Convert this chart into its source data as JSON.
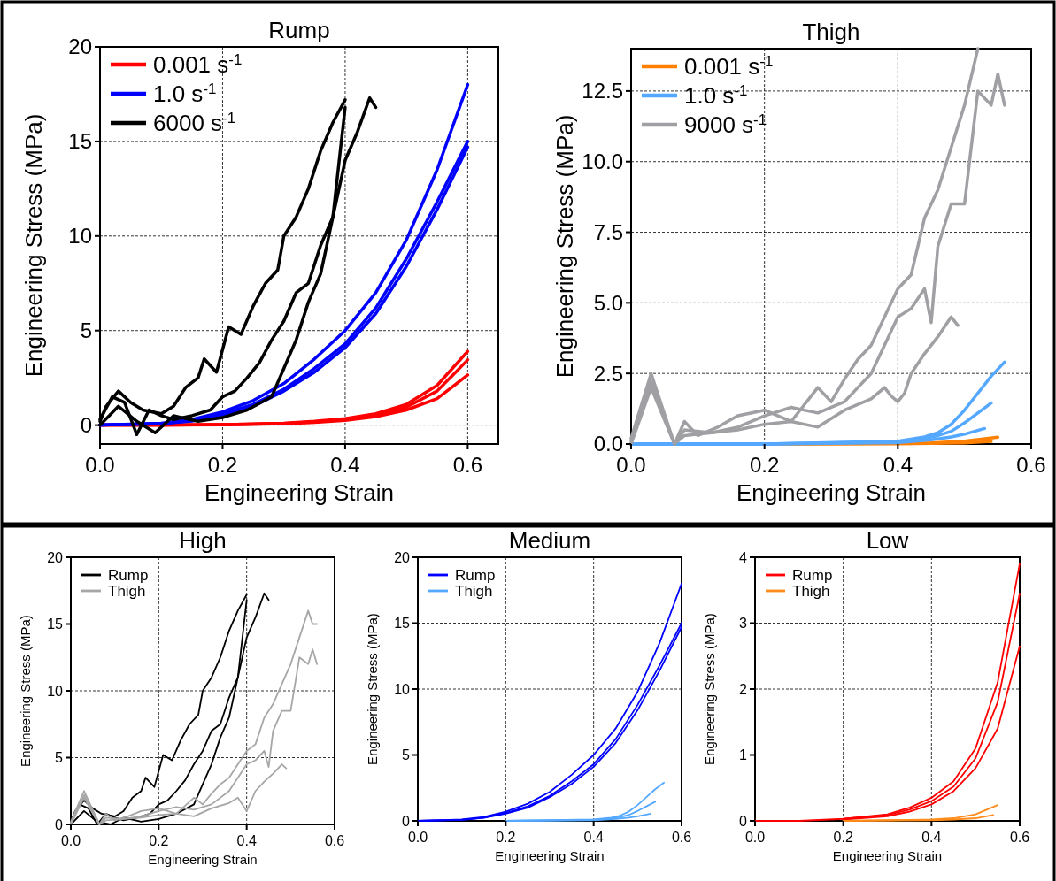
{
  "chart_data": [
    {
      "type": "line",
      "title": "Rump",
      "xlabel": "Engineering Strain",
      "ylabel": "Engineering Stress (MPa)",
      "xlim": [
        0,
        0.65
      ],
      "ylim": [
        -1,
        20
      ],
      "xticks": [
        {
          "value": 0,
          "label": "0.0"
        },
        {
          "value": 0.2,
          "label": "0.2"
        },
        {
          "value": 0.4,
          "label": "0.4"
        },
        {
          "value": 0.6,
          "label": "0.6"
        }
      ],
      "yticks": [
        0,
        5,
        10,
        15,
        20
      ],
      "grid": true,
      "legend": "top left",
      "series": [
        {
          "name": "0.001 s$^{-1}$",
          "color": "#ff0000",
          "x": [
            0,
            0.1,
            0.2,
            0.3,
            0.35,
            0.4,
            0.45,
            0.5,
            0.55,
            0.6
          ],
          "values": [
            0,
            0,
            0.03,
            0.1,
            0.2,
            0.35,
            0.6,
            1.1,
            2.1,
            3.9
          ]
        },
        {
          "color": "#ff0000",
          "x": [
            0,
            0.1,
            0.2,
            0.3,
            0.35,
            0.4,
            0.45,
            0.5,
            0.55,
            0.6
          ],
          "values": [
            0,
            0,
            0.03,
            0.09,
            0.17,
            0.3,
            0.52,
            0.95,
            1.8,
            3.45
          ]
        },
        {
          "color": "#ff0000",
          "x": [
            0,
            0.1,
            0.2,
            0.3,
            0.35,
            0.4,
            0.45,
            0.5,
            0.55,
            0.6
          ],
          "values": [
            0,
            0,
            0.02,
            0.07,
            0.14,
            0.25,
            0.45,
            0.8,
            1.4,
            2.65
          ]
        },
        {
          "name": "1.0 s$^{-1}$",
          "color": "#0000ff",
          "x": [
            0,
            0.1,
            0.15,
            0.2,
            0.25,
            0.3,
            0.35,
            0.4,
            0.45,
            0.5,
            0.55,
            0.6
          ],
          "values": [
            0,
            0.1,
            0.3,
            0.7,
            1.3,
            2.2,
            3.5,
            5,
            7,
            9.8,
            13.5,
            18
          ]
        },
        {
          "color": "#0000ff",
          "x": [
            0,
            0.1,
            0.15,
            0.2,
            0.25,
            0.3,
            0.35,
            0.4,
            0.45,
            0.5,
            0.55,
            0.6
          ],
          "values": [
            0,
            0.08,
            0.25,
            0.6,
            1.1,
            1.9,
            3,
            4.3,
            6.2,
            8.8,
            11.8,
            15
          ]
        },
        {
          "color": "#0000ff",
          "x": [
            0,
            0.1,
            0.15,
            0.2,
            0.25,
            0.3,
            0.35,
            0.4,
            0.45,
            0.5,
            0.55,
            0.6
          ],
          "values": [
            0,
            0.07,
            0.22,
            0.55,
            1,
            1.8,
            2.8,
            4.1,
            5.9,
            8.4,
            11.4,
            14.7
          ]
        },
        {
          "name": "6000 s$^{-1}$",
          "color": "#000000",
          "x": [
            0,
            0.01,
            0.03,
            0.05,
            0.07,
            0.1,
            0.12,
            0.14,
            0.16,
            0.17,
            0.19,
            0.21,
            0.23,
            0.25,
            0.27,
            0.29,
            0.3,
            0.32,
            0.34,
            0.36,
            0.38,
            0.4
          ],
          "values": [
            0.2,
            1,
            1.8,
            1.2,
            0.8,
            0.6,
            1,
            2,
            2.5,
            3.5,
            2.8,
            5.2,
            4.8,
            6.3,
            7.5,
            8.2,
            10,
            11,
            12.5,
            14.5,
            16,
            17.2
          ]
        },
        {
          "color": "#000000",
          "x": [
            0,
            0.02,
            0.04,
            0.06,
            0.08,
            0.1,
            0.12,
            0.15,
            0.18,
            0.2,
            0.22,
            0.24,
            0.26,
            0.28,
            0.3,
            0.32,
            0.34,
            0.36,
            0.38,
            0.4,
            0.42,
            0.44,
            0.45
          ],
          "values": [
            0.3,
            1.5,
            1.2,
            -0.5,
            0.8,
            0.5,
            0.3,
            0.5,
            0.8,
            1.5,
            1.8,
            2.5,
            3.3,
            4.5,
            5.5,
            7,
            7.5,
            9.5,
            11,
            14,
            15.5,
            17.3,
            16.8
          ]
        },
        {
          "color": "#000000",
          "x": [
            0,
            0.03,
            0.06,
            0.09,
            0.12,
            0.16,
            0.2,
            0.24,
            0.28,
            0.3,
            0.32,
            0.34,
            0.36,
            0.38,
            0.4
          ],
          "values": [
            0,
            1,
            0.2,
            -0.4,
            0.5,
            0.2,
            0.4,
            0.8,
            1.5,
            3,
            4.5,
            6.5,
            8,
            11,
            16.8
          ]
        }
      ]
    },
    {
      "type": "line",
      "title": "Thigh",
      "xlabel": "Engineering Strain",
      "ylabel": "Engineering Stress (MPa)",
      "xlim": [
        0,
        0.6
      ],
      "ylim": [
        0,
        14
      ],
      "xticks": [
        {
          "value": 0,
          "label": "0.0"
        },
        {
          "value": 0.2,
          "label": "0.2"
        },
        {
          "value": 0.4,
          "label": "0.4"
        },
        {
          "value": 0.6,
          "label": "0.6"
        }
      ],
      "yticks": [
        {
          "value": 0,
          "label": "0.0"
        },
        {
          "value": 2.5,
          "label": "2.5"
        },
        {
          "value": 5,
          "label": "5.0"
        },
        {
          "value": 7.5,
          "label": "7.5"
        },
        {
          "value": 10,
          "label": "10.0"
        },
        {
          "value": 12.5,
          "label": "12.5"
        }
      ],
      "grid": true,
      "legend": "top left",
      "series": [
        {
          "name": "0.001 s$^{-1}$",
          "color": "#ff8000",
          "x": [
            0,
            0.2,
            0.4,
            0.45,
            0.5,
            0.55
          ],
          "values": [
            0,
            0,
            0.02,
            0.04,
            0.1,
            0.24
          ]
        },
        {
          "color": "#ff8000",
          "x": [
            0,
            0.2,
            0.4,
            0.45,
            0.5,
            0.54
          ],
          "values": [
            0,
            0,
            0.01,
            0.02,
            0.04,
            0.09
          ]
        },
        {
          "name": "1.0 s$^{-1}$",
          "color": "#55a8ff",
          "x": [
            0,
            0.2,
            0.4,
            0.44,
            0.46,
            0.48,
            0.5,
            0.52,
            0.54,
            0.56
          ],
          "values": [
            0,
            0,
            0.1,
            0.25,
            0.4,
            0.7,
            1.2,
            1.8,
            2.4,
            2.9
          ]
        },
        {
          "color": "#55a8ff",
          "x": [
            0,
            0.2,
            0.4,
            0.44,
            0.46,
            0.48,
            0.5,
            0.52,
            0.54
          ],
          "values": [
            0,
            0,
            0.08,
            0.2,
            0.3,
            0.45,
            0.75,
            1.1,
            1.45
          ]
        },
        {
          "color": "#55a8ff",
          "x": [
            0,
            0.2,
            0.4,
            0.45,
            0.48,
            0.5,
            0.53
          ],
          "values": [
            0,
            0,
            0.05,
            0.15,
            0.25,
            0.35,
            0.55
          ]
        },
        {
          "name": "9000 s$^{-1}$",
          "color": "#a0a0a4",
          "x": [
            0,
            0.03,
            0.065,
            0.08,
            0.1,
            0.13,
            0.16,
            0.2,
            0.24,
            0.28,
            0.3,
            0.32,
            0.34,
            0.36,
            0.38,
            0.4,
            0.42,
            0.44,
            0.46,
            0.48,
            0.5,
            0.52
          ],
          "values": [
            0.2,
            2.5,
            0,
            0.8,
            0.3,
            0.6,
            1,
            1.2,
            0.8,
            2,
            1.5,
            2.3,
            3,
            3.5,
            4.5,
            5.5,
            6,
            8,
            9,
            10.5,
            12,
            14
          ]
        },
        {
          "color": "#a0a0a4",
          "x": [
            0,
            0.03,
            0.065,
            0.08,
            0.12,
            0.16,
            0.2,
            0.24,
            0.28,
            0.32,
            0.36,
            0.38,
            0.4,
            0.42,
            0.44,
            0.45,
            0.46,
            0.48,
            0.5,
            0.52,
            0.54,
            0.55,
            0.56
          ],
          "values": [
            0.1,
            2.2,
            0,
            0.5,
            0.4,
            0.6,
            1,
            1.3,
            1.1,
            1.5,
            2.5,
            3.5,
            4.5,
            4.8,
            5.5,
            4.3,
            7,
            8.5,
            8.5,
            12.5,
            12,
            13.1,
            12
          ]
        },
        {
          "color": "#a0a0a4",
          "x": [
            0,
            0.03,
            0.065,
            0.08,
            0.12,
            0.16,
            0.2,
            0.24,
            0.28,
            0.32,
            0.36,
            0.38,
            0.39,
            0.4,
            0.41,
            0.42,
            0.44,
            0.46,
            0.48,
            0.49
          ],
          "values": [
            0,
            2,
            0,
            0.3,
            0.4,
            0.5,
            0.7,
            0.8,
            0.6,
            1.2,
            1.6,
            2,
            1.7,
            1.5,
            1.8,
            2.5,
            3.2,
            3.8,
            4.5,
            4.2
          ]
        }
      ]
    },
    {
      "type": "line",
      "title": "High",
      "xlabel": "Engineering Strain",
      "ylabel": "Engineering Stress (MPa)",
      "xlim": [
        0,
        0.6
      ],
      "ylim": [
        0,
        20
      ],
      "xticks": [
        {
          "value": 0,
          "label": "0.0"
        },
        {
          "value": 0.2,
          "label": "0.2"
        },
        {
          "value": 0.4,
          "label": "0.4"
        },
        {
          "value": 0.6,
          "label": "0.6"
        }
      ],
      "yticks": [
        0,
        5,
        10,
        15,
        20
      ],
      "grid": true,
      "legend": "top left",
      "series": [
        {
          "name": "Rump",
          "color": "#000000",
          "x": [
            0,
            0.01,
            0.03,
            0.05,
            0.07,
            0.1,
            0.12,
            0.14,
            0.16,
            0.17,
            0.19,
            0.21,
            0.23,
            0.25,
            0.27,
            0.29,
            0.3,
            0.32,
            0.34,
            0.36,
            0.38,
            0.4
          ],
          "values": [
            0.2,
            1,
            1.8,
            1.2,
            0.8,
            0.6,
            1,
            2,
            2.5,
            3.5,
            2.8,
            5.2,
            4.8,
            6.3,
            7.5,
            8.2,
            10,
            11,
            12.5,
            14.5,
            16,
            17.2
          ]
        },
        {
          "color": "#000000",
          "x": [
            0,
            0.02,
            0.04,
            0.06,
            0.08,
            0.1,
            0.12,
            0.15,
            0.18,
            0.2,
            0.22,
            0.24,
            0.26,
            0.28,
            0.3,
            0.32,
            0.34,
            0.36,
            0.38,
            0.4,
            0.42,
            0.44,
            0.45
          ],
          "values": [
            0.3,
            1.5,
            1.2,
            0,
            0.8,
            0.5,
            0.3,
            0.5,
            0.8,
            1.5,
            1.8,
            2.5,
            3.3,
            4.5,
            5.5,
            7,
            7.5,
            9.5,
            11,
            14,
            15.5,
            17.3,
            16.8
          ]
        },
        {
          "color": "#000000",
          "x": [
            0,
            0.03,
            0.06,
            0.09,
            0.12,
            0.16,
            0.2,
            0.24,
            0.28,
            0.3,
            0.32,
            0.34,
            0.36,
            0.38,
            0.4
          ],
          "values": [
            0,
            1,
            0.2,
            0,
            0.5,
            0.2,
            0.4,
            0.8,
            1.5,
            3,
            4.5,
            6.5,
            8,
            11,
            16.8
          ]
        },
        {
          "name": "Thigh",
          "color": "#a6a6a6",
          "x": [
            0,
            0.03,
            0.065,
            0.08,
            0.1,
            0.13,
            0.16,
            0.2,
            0.24,
            0.28,
            0.3,
            0.32,
            0.34,
            0.36,
            0.38,
            0.4,
            0.42,
            0.44,
            0.46,
            0.48,
            0.5,
            0.52,
            0.54,
            0.55,
            0.56
          ],
          "values": [
            0.2,
            2.5,
            0,
            0.8,
            0.3,
            0.6,
            1,
            1.2,
            0.8,
            2,
            1.5,
            2.3,
            3,
            3.5,
            4.5,
            5.5,
            6,
            8,
            9,
            10.5,
            12,
            14,
            16,
            15,
            15
          ]
        },
        {
          "color": "#a6a6a6",
          "x": [
            0,
            0.03,
            0.065,
            0.08,
            0.12,
            0.16,
            0.2,
            0.24,
            0.28,
            0.32,
            0.36,
            0.38,
            0.4,
            0.42,
            0.44,
            0.45,
            0.46,
            0.48,
            0.5,
            0.52,
            0.54,
            0.55,
            0.56
          ],
          "values": [
            0.1,
            2.2,
            0,
            0.5,
            0.4,
            0.6,
            1,
            1.3,
            1.1,
            1.5,
            2.5,
            3.5,
            4.5,
            4.8,
            5.5,
            4.3,
            7,
            8.5,
            8.5,
            12.5,
            12,
            13.1,
            12
          ]
        },
        {
          "color": "#a6a6a6",
          "x": [
            0,
            0.03,
            0.065,
            0.08,
            0.12,
            0.16,
            0.2,
            0.24,
            0.28,
            0.32,
            0.36,
            0.38,
            0.4,
            0.42,
            0.44,
            0.46,
            0.48,
            0.49
          ],
          "values": [
            0,
            2,
            0,
            0.3,
            0.4,
            0.5,
            0.7,
            0.8,
            0.6,
            1.2,
            1.6,
            2,
            1,
            2.5,
            3.2,
            3.8,
            4.5,
            4.2
          ]
        }
      ]
    },
    {
      "type": "line",
      "title": "Medium",
      "xlabel": "Engineering Strain",
      "ylabel": "Engineering Stress (MPa)",
      "xlim": [
        0,
        0.6
      ],
      "ylim": [
        0,
        20
      ],
      "xticks": [
        {
          "value": 0,
          "label": "0.0"
        },
        {
          "value": 0.2,
          "label": "0.2"
        },
        {
          "value": 0.4,
          "label": "0.4"
        },
        {
          "value": 0.6,
          "label": "0.6"
        }
      ],
      "yticks": [
        0,
        5,
        10,
        15,
        20
      ],
      "grid": true,
      "legend": "top left",
      "series": [
        {
          "name": "Rump",
          "color": "#0000ff",
          "x": [
            0,
            0.1,
            0.15,
            0.2,
            0.25,
            0.3,
            0.35,
            0.4,
            0.45,
            0.5,
            0.55,
            0.6
          ],
          "values": [
            0,
            0.1,
            0.3,
            0.7,
            1.3,
            2.2,
            3.5,
            5,
            7,
            9.8,
            13.5,
            18
          ]
        },
        {
          "color": "#0000ff",
          "x": [
            0,
            0.1,
            0.15,
            0.2,
            0.25,
            0.3,
            0.35,
            0.4,
            0.45,
            0.5,
            0.55,
            0.6
          ],
          "values": [
            0,
            0.08,
            0.25,
            0.6,
            1.1,
            1.9,
            3,
            4.3,
            6.2,
            8.8,
            11.8,
            15
          ]
        },
        {
          "color": "#0000ff",
          "x": [
            0,
            0.1,
            0.15,
            0.2,
            0.25,
            0.3,
            0.35,
            0.4,
            0.45,
            0.5,
            0.55,
            0.6
          ],
          "values": [
            0,
            0.07,
            0.22,
            0.55,
            1,
            1.8,
            2.8,
            4.1,
            5.9,
            8.4,
            11.4,
            14.7
          ]
        },
        {
          "name": "Thigh",
          "color": "#55a8ff",
          "x": [
            0.2,
            0.4,
            0.44,
            0.46,
            0.48,
            0.5,
            0.52,
            0.54,
            0.56
          ],
          "values": [
            0,
            0.1,
            0.25,
            0.4,
            0.7,
            1.2,
            1.8,
            2.4,
            2.9
          ]
        },
        {
          "color": "#55a8ff",
          "x": [
            0.2,
            0.4,
            0.44,
            0.46,
            0.48,
            0.5,
            0.52,
            0.54
          ],
          "values": [
            0,
            0.08,
            0.2,
            0.3,
            0.45,
            0.75,
            1.1,
            1.45
          ]
        },
        {
          "color": "#55a8ff",
          "x": [
            0.2,
            0.4,
            0.45,
            0.48,
            0.5,
            0.53
          ],
          "values": [
            0,
            0.05,
            0.15,
            0.25,
            0.35,
            0.55
          ]
        }
      ]
    },
    {
      "type": "line",
      "title": "Low",
      "xlabel": "Engineering Strain",
      "ylabel": "Engineering Stress (MPa)",
      "xlim": [
        0,
        0.6
      ],
      "ylim": [
        0,
        4
      ],
      "xticks": [
        {
          "value": 0,
          "label": "0.0"
        },
        {
          "value": 0.2,
          "label": "0.2"
        },
        {
          "value": 0.4,
          "label": "0.4"
        },
        {
          "value": 0.6,
          "label": "0.6"
        }
      ],
      "yticks": [
        0,
        1,
        2,
        3,
        4
      ],
      "grid": true,
      "legend": "top left",
      "series": [
        {
          "name": "Rump",
          "color": "#ff0000",
          "x": [
            0,
            0.1,
            0.2,
            0.3,
            0.35,
            0.4,
            0.45,
            0.5,
            0.55,
            0.6
          ],
          "values": [
            0,
            0,
            0.03,
            0.1,
            0.2,
            0.35,
            0.6,
            1.1,
            2.1,
            3.9
          ]
        },
        {
          "color": "#ff0000",
          "x": [
            0.2,
            0.3,
            0.35,
            0.4,
            0.45,
            0.5,
            0.55,
            0.6
          ],
          "values": [
            0.03,
            0.09,
            0.17,
            0.3,
            0.52,
            0.95,
            1.8,
            3.45
          ]
        },
        {
          "color": "#ff0000",
          "x": [
            0.2,
            0.3,
            0.35,
            0.4,
            0.45,
            0.5,
            0.55,
            0.6
          ],
          "values": [
            0.02,
            0.07,
            0.14,
            0.25,
            0.45,
            0.8,
            1.4,
            2.65
          ]
        },
        {
          "name": "Thigh",
          "color": "#ff8c1a",
          "x": [
            0.2,
            0.4,
            0.45,
            0.5,
            0.55
          ],
          "values": [
            0,
            0.02,
            0.04,
            0.1,
            0.24
          ]
        },
        {
          "color": "#ff8c1a",
          "x": [
            0.2,
            0.4,
            0.45,
            0.5,
            0.54
          ],
          "values": [
            0,
            0.01,
            0.02,
            0.04,
            0.09
          ]
        }
      ]
    }
  ]
}
